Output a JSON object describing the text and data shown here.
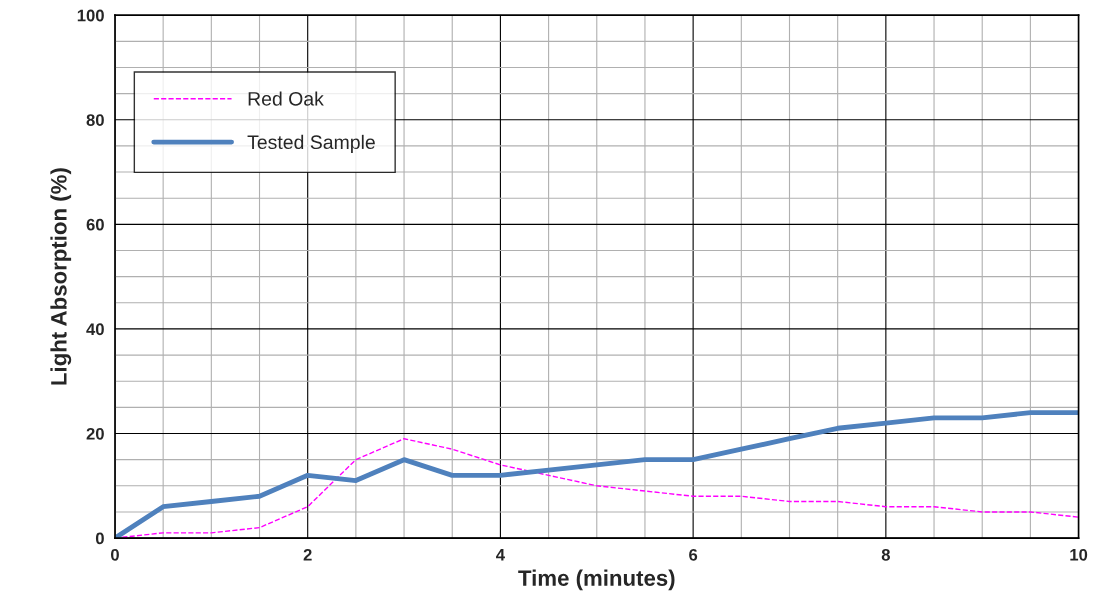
{
  "chart_data": {
    "type": "line",
    "xlabel": "Time (minutes)",
    "ylabel": "Light Absorption (%)",
    "x": [
      0,
      0.5,
      1,
      1.5,
      2,
      2.5,
      3,
      3.5,
      4,
      4.5,
      5,
      5.5,
      6,
      6.5,
      7,
      7.5,
      8,
      8.5,
      9,
      9.5,
      10
    ],
    "series": [
      {
        "name": "Red Oak",
        "color": "#ff00ff",
        "line_style": "dashed",
        "values": [
          0,
          1,
          1,
          2,
          6,
          15,
          19,
          17,
          14,
          12,
          10,
          9,
          8,
          8,
          7,
          7,
          6,
          6,
          5,
          5,
          4
        ]
      },
      {
        "name": "Tested Sample",
        "color": "#4f81bd",
        "line_style": "solid",
        "values": [
          0,
          6,
          7,
          8,
          12,
          11,
          15,
          12,
          12,
          13,
          14,
          15,
          15,
          17,
          19,
          21,
          22,
          23,
          23,
          24,
          24
        ]
      }
    ],
    "xlim": [
      0,
      10
    ],
    "xticks": [
      0,
      2,
      4,
      6,
      8,
      10
    ],
    "ylim": [
      0,
      100
    ],
    "yticks": [
      0,
      20,
      40,
      60,
      80,
      100
    ],
    "grid": true,
    "legend": "top left",
    "marker": "none"
  }
}
